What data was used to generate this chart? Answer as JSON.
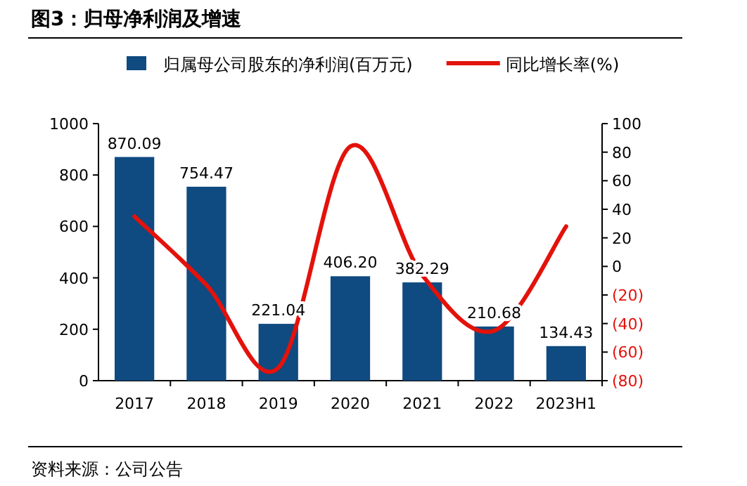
{
  "chart_data": {
    "type": "bar",
    "title": "图3：归母净利润及增速",
    "annotations": [
      "资料来源：公司公告"
    ],
    "categories": [
      "2017",
      "2018",
      "2019",
      "2020",
      "2021",
      "2022",
      "2023H1"
    ],
    "series": [
      {
        "name": "归属母公司股东的净利润(百万元)",
        "color": "#0f4a80",
        "values": [
          870.09,
          754.47,
          221.04,
          406.2,
          382.29,
          210.68,
          134.43
        ],
        "value_labels": [
          "870.09",
          "754.47",
          "221.04",
          "406.20",
          "382.29",
          "210.68",
          "134.43"
        ]
      },
      {
        "name": "同比增长率(%)",
        "type": "line",
        "axis": "y2",
        "color": "#e3120b",
        "values": [
          35,
          -13,
          -71,
          84,
          -6,
          -45,
          28
        ]
      }
    ],
    "ylim": [
      0,
      1000
    ],
    "yticks": [
      0,
      200,
      400,
      600,
      800,
      1000
    ],
    "y2lim": [
      -80,
      100
    ],
    "y2ticks": [
      {
        "value": -80,
        "label": "(80)"
      },
      {
        "value": -60,
        "label": "(60)"
      },
      {
        "value": -40,
        "label": "(40)"
      },
      {
        "value": -20,
        "label": "(20)"
      },
      0,
      20,
      40,
      60,
      80,
      100
    ],
    "legend": "top",
    "grid": false,
    "marker": "none",
    "line_style": "solid"
  }
}
